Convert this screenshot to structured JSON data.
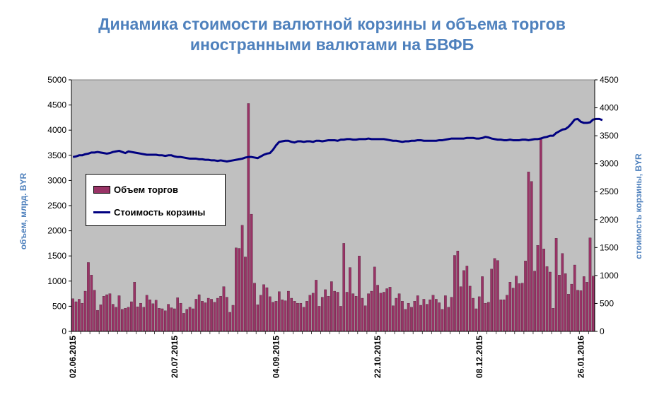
{
  "title_line1": "Динамика стоимости валютной корзины и объема торгов",
  "title_line2": "иностранными валютами на БВФБ",
  "colors": {
    "title": "#4f81bd",
    "plot_bg": "#c0c0c0",
    "bars": "#993366",
    "line": "#000080"
  },
  "chart_data": {
    "type": "bar",
    "y_left_label": "объем, млрд. BYR",
    "y_right_label": "стоимость корзины, BYR",
    "y_left_lim": [
      0,
      5000
    ],
    "y_left_ticks": [
      "0",
      "500",
      "1000",
      "1500",
      "2000",
      "2500",
      "3000",
      "3500",
      "4000",
      "4500",
      "5000"
    ],
    "y_right_lim": [
      0,
      4500
    ],
    "y_right_ticks": [
      "0",
      "500",
      "1000",
      "1500",
      "2000",
      "2500",
      "3000",
      "3500",
      "4000",
      "4500"
    ],
    "x_tick_labels": [
      "02.06.2015",
      "20.07.2015",
      "04.09.2015",
      "22.10.2015",
      "08.12.2015",
      "26.01.2016"
    ],
    "x_tick_indices": [
      0,
      33,
      66,
      99,
      132,
      165
    ],
    "legend": {
      "bars": "Объем торгов",
      "line": "Стоимость корзины"
    },
    "series": [
      {
        "name": "Объем торгов",
        "values": [
          650,
          590,
          640,
          560,
          800,
          1370,
          1120,
          820,
          420,
          530,
          700,
          730,
          750,
          540,
          480,
          710,
          440,
          460,
          480,
          590,
          980,
          490,
          560,
          480,
          720,
          630,
          550,
          620,
          460,
          450,
          410,
          540,
          470,
          450,
          670,
          560,
          360,
          440,
          480,
          450,
          640,
          730,
          600,
          570,
          660,
          640,
          580,
          660,
          700,
          890,
          680,
          380,
          520,
          1660,
          1650,
          2110,
          1480,
          4530,
          2330,
          960,
          530,
          720,
          930,
          870,
          690,
          580,
          600,
          790,
          630,
          610,
          800,
          660,
          600,
          560,
          560,
          480,
          600,
          720,
          760,
          1020,
          500,
          680,
          830,
          700,
          990,
          800,
          780,
          500,
          1750,
          780,
          1270,
          750,
          700,
          1500,
          660,
          510,
          750,
          800,
          1280,
          920,
          760,
          780,
          850,
          880,
          510,
          660,
          750,
          600,
          440,
          560,
          480,
          600,
          710,
          520,
          640,
          540,
          630,
          720,
          640,
          570,
          440,
          710,
          480,
          680,
          1510,
          1600,
          890,
          1210,
          1300,
          900,
          660,
          450,
          690,
          1090,
          560,
          580,
          1240,
          1450,
          1410,
          630,
          630,
          720,
          980,
          860,
          1100,
          950,
          960,
          1400,
          3170,
          2980,
          1200,
          1710,
          3850,
          1640,
          1290,
          1180,
          460,
          1850,
          1120,
          1550,
          1150,
          740,
          940,
          1320,
          820,
          810,
          1090,
          980,
          1860,
          1100
        ]
      },
      {
        "name": "Стоимость корзины",
        "values": [
          3120,
          3130,
          3150,
          3150,
          3170,
          3180,
          3200,
          3200,
          3210,
          3200,
          3190,
          3180,
          3190,
          3210,
          3220,
          3230,
          3210,
          3190,
          3220,
          3210,
          3200,
          3190,
          3180,
          3170,
          3160,
          3160,
          3160,
          3160,
          3150,
          3150,
          3140,
          3150,
          3150,
          3130,
          3120,
          3120,
          3110,
          3100,
          3090,
          3090,
          3090,
          3080,
          3080,
          3070,
          3070,
          3060,
          3060,
          3050,
          3060,
          3050,
          3040,
          3050,
          3060,
          3070,
          3080,
          3090,
          3110,
          3120,
          3120,
          3110,
          3100,
          3130,
          3160,
          3180,
          3190,
          3250,
          3330,
          3390,
          3400,
          3410,
          3410,
          3390,
          3380,
          3400,
          3400,
          3390,
          3400,
          3400,
          3390,
          3410,
          3410,
          3400,
          3410,
          3420,
          3420,
          3420,
          3410,
          3430,
          3430,
          3440,
          3440,
          3430,
          3430,
          3440,
          3440,
          3440,
          3450,
          3440,
          3440,
          3440,
          3440,
          3440,
          3430,
          3420,
          3410,
          3410,
          3400,
          3390,
          3400,
          3400,
          3410,
          3410,
          3420,
          3420,
          3410,
          3410,
          3410,
          3410,
          3410,
          3420,
          3420,
          3430,
          3440,
          3450,
          3450,
          3450,
          3450,
          3450,
          3460,
          3460,
          3460,
          3450,
          3450,
          3460,
          3480,
          3470,
          3450,
          3440,
          3430,
          3430,
          3420,
          3420,
          3430,
          3420,
          3420,
          3420,
          3430,
          3430,
          3420,
          3430,
          3440,
          3440,
          3450,
          3470,
          3480,
          3500,
          3500,
          3550,
          3580,
          3610,
          3620,
          3660,
          3720,
          3790,
          3800,
          3750,
          3730,
          3730,
          3740,
          3790,
          3800,
          3800,
          3780
        ]
      }
    ],
    "grid": "none",
    "legend_position": "left-middle"
  }
}
